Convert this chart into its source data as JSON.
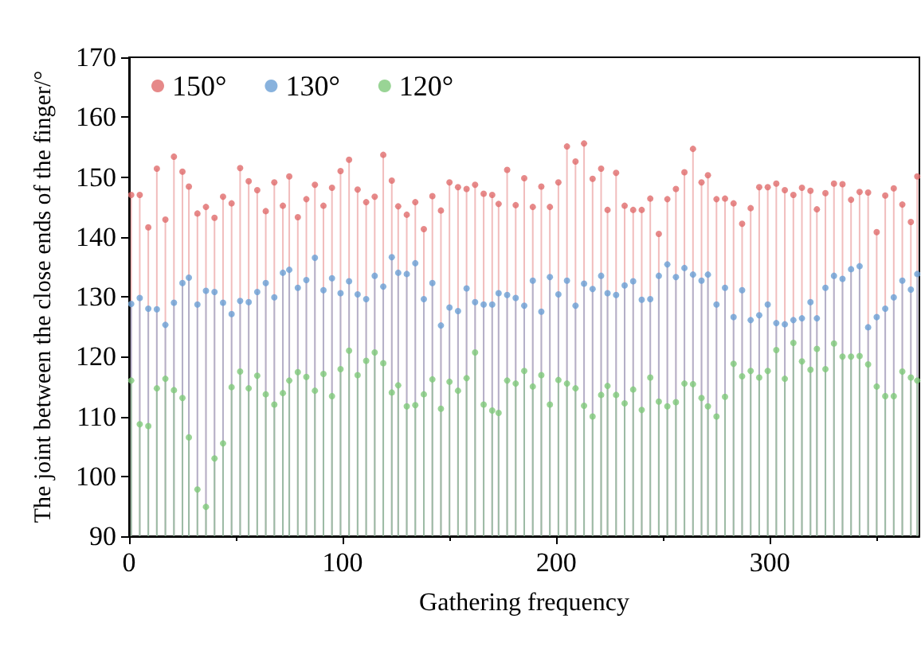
{
  "chart_data": {
    "type": "lollipop",
    "xlabel": "Gathering frequency",
    "ylabel": "The joint between the close ends of the finger/°",
    "x": [
      1,
      5,
      9,
      13,
      17,
      21,
      25,
      28,
      32,
      36,
      40,
      44,
      48,
      52,
      56,
      60,
      64,
      68,
      72,
      75,
      79,
      83,
      87,
      91,
      95,
      99,
      103,
      107,
      111,
      115,
      119,
      123,
      126,
      130,
      134,
      138,
      142,
      146,
      150,
      154,
      158,
      162,
      166,
      170,
      173,
      177,
      181,
      185,
      189,
      193,
      197,
      201,
      205,
      209,
      213,
      217,
      221,
      224,
      228,
      232,
      236,
      240,
      244,
      248,
      252,
      256,
      260,
      264,
      268,
      271,
      275,
      279,
      283,
      287,
      291,
      295,
      299,
      303,
      307,
      311,
      315,
      319,
      322,
      326,
      330,
      334,
      338,
      342,
      346,
      350,
      354,
      358,
      362,
      366,
      369
    ],
    "series": [
      {
        "name": "150°",
        "color": "#e06c6c",
        "values": [
          147.0,
          147.0,
          141.6,
          151.4,
          142.9,
          153.4,
          150.9,
          148.4,
          143.9,
          145.0,
          143.2,
          146.7,
          145.6,
          151.5,
          149.3,
          147.8,
          144.3,
          149.1,
          145.2,
          150.1,
          143.3,
          146.3,
          148.7,
          145.2,
          148.2,
          151.0,
          152.9,
          147.9,
          145.8,
          146.7,
          153.7,
          149.4,
          145.1,
          143.7,
          145.8,
          141.3,
          146.8,
          144.4,
          149.1,
          148.3,
          148.0,
          148.7,
          147.2,
          147.0,
          145.5,
          151.2,
          145.3,
          149.8,
          145.0,
          148.4,
          145.0,
          149.1,
          155.1,
          152.6,
          155.6,
          149.7,
          151.4,
          144.5,
          150.7,
          145.2,
          144.5,
          144.5,
          146.4,
          140.5,
          146.3,
          148.0,
          150.8,
          154.7,
          149.1,
          150.3,
          146.3,
          146.4,
          145.6,
          142.2,
          144.8,
          148.3,
          148.3,
          148.9,
          147.8,
          147.0,
          148.2,
          147.7,
          144.6,
          147.3,
          148.9,
          148.8,
          146.2,
          147.5,
          147.4,
          140.8,
          146.9,
          148.1,
          145.4,
          142.5,
          150.1
        ]
      },
      {
        "name": "130°",
        "color": "#6a9fd4",
        "values": [
          128.8,
          129.8,
          128.0,
          127.9,
          125.3,
          129.0,
          132.3,
          133.2,
          128.7,
          131.0,
          130.8,
          129.0,
          127.1,
          129.3,
          129.1,
          130.8,
          132.3,
          129.9,
          134.0,
          134.5,
          131.5,
          132.8,
          136.5,
          131.1,
          133.1,
          130.6,
          132.6,
          130.4,
          129.6,
          133.5,
          131.7,
          136.6,
          134.0,
          133.8,
          135.6,
          129.6,
          132.3,
          125.2,
          128.2,
          127.6,
          131.4,
          129.1,
          128.7,
          128.7,
          130.6,
          130.3,
          129.8,
          128.5,
          132.7,
          127.5,
          133.3,
          130.4,
          132.7,
          128.5,
          132.2,
          131.3,
          133.5,
          130.6,
          130.3,
          131.9,
          132.6,
          129.5,
          129.6,
          133.5,
          135.4,
          133.3,
          134.8,
          133.7,
          132.7,
          133.7,
          128.7,
          131.5,
          126.6,
          131.1,
          126.1,
          126.9,
          128.7,
          125.6,
          125.4,
          126.1,
          126.4,
          129.1,
          126.4,
          131.5,
          133.5,
          133.0,
          134.6,
          135.1,
          124.9,
          126.6,
          128.0,
          129.9,
          132.7,
          131.2,
          133.8
        ]
      },
      {
        "name": "120°",
        "color": "#7fc97a",
        "values": [
          116.0,
          108.7,
          108.4,
          114.7,
          116.3,
          114.4,
          113.1,
          106.5,
          97.8,
          94.9,
          103.0,
          105.5,
          114.9,
          117.5,
          114.7,
          116.8,
          113.7,
          112.0,
          113.9,
          116.0,
          117.4,
          116.6,
          114.3,
          117.1,
          113.4,
          117.9,
          121.0,
          116.9,
          119.3,
          120.7,
          118.9,
          114.0,
          115.2,
          111.7,
          111.9,
          113.7,
          116.2,
          111.3,
          115.8,
          114.3,
          116.4,
          120.7,
          112.0,
          111.0,
          110.6,
          116.0,
          115.5,
          117.6,
          115.0,
          116.9,
          112.0,
          116.1,
          115.5,
          114.7,
          111.8,
          110.0,
          113.6,
          115.1,
          113.6,
          112.2,
          114.5,
          111.1,
          116.5,
          112.5,
          111.7,
          112.4,
          115.5,
          115.4,
          113.1,
          111.7,
          110.0,
          113.3,
          118.8,
          116.7,
          117.6,
          116.5,
          117.6,
          121.1,
          116.3,
          122.3,
          119.2,
          117.8,
          121.3,
          117.9,
          122.2,
          120.0,
          120.0,
          120.1,
          118.7,
          115.0,
          113.4,
          113.4,
          117.5,
          116.5,
          116.0
        ]
      }
    ],
    "xlim": [
      0,
      370
    ],
    "xticks": [
      0,
      100,
      200,
      300
    ],
    "ylim": [
      90,
      170
    ],
    "yticks": [
      90,
      100,
      110,
      120,
      130,
      140,
      150,
      160,
      170
    ],
    "legend": "top left",
    "marker": "circle"
  }
}
